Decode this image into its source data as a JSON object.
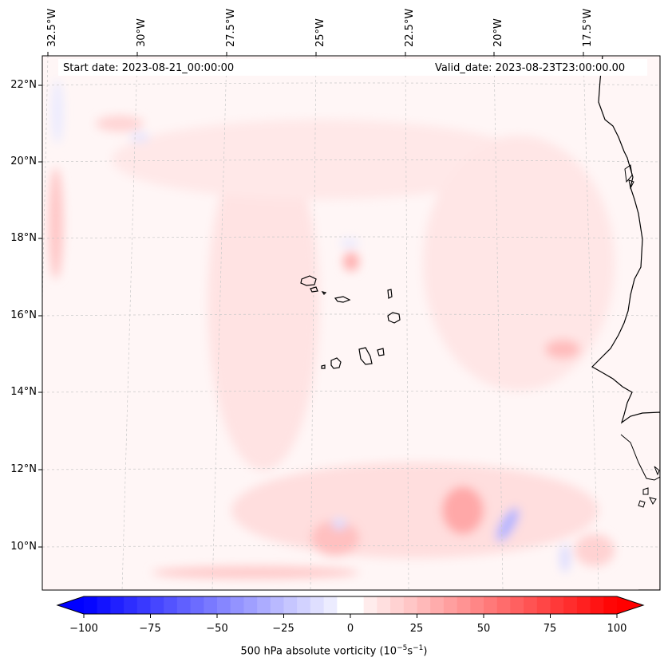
{
  "map": {
    "start_date": "Start date: 2023-08-21_00:00:00",
    "valid_date": "Valid_date: 2023-08-23T23:00:00.00",
    "lat_labels": [
      "22°N",
      "20°N",
      "18°N",
      "16°N",
      "14°N",
      "12°N",
      "10°N"
    ],
    "lon_labels": [
      "32.5°W",
      "30°W",
      "27.5°W",
      "25°W",
      "22.5°W",
      "20°W",
      "17.5°W"
    ],
    "field": "500 hPa absolute vorticity",
    "colors": {
      "positive": "#ff0000",
      "negative": "#0000ff",
      "coast": "#000000",
      "grid": "#c8c8c8"
    }
  },
  "colorbar": {
    "ticks": [
      "−100",
      "−75",
      "−50",
      "−25",
      "0",
      "25",
      "50",
      "75",
      "100"
    ],
    "title": "500 hPa absolute vorticity (10",
    "title_exp1": "−5",
    "title_mid": "s",
    "title_exp2": "−1",
    "title_end": ")",
    "range": [
      -100,
      100
    ]
  }
}
